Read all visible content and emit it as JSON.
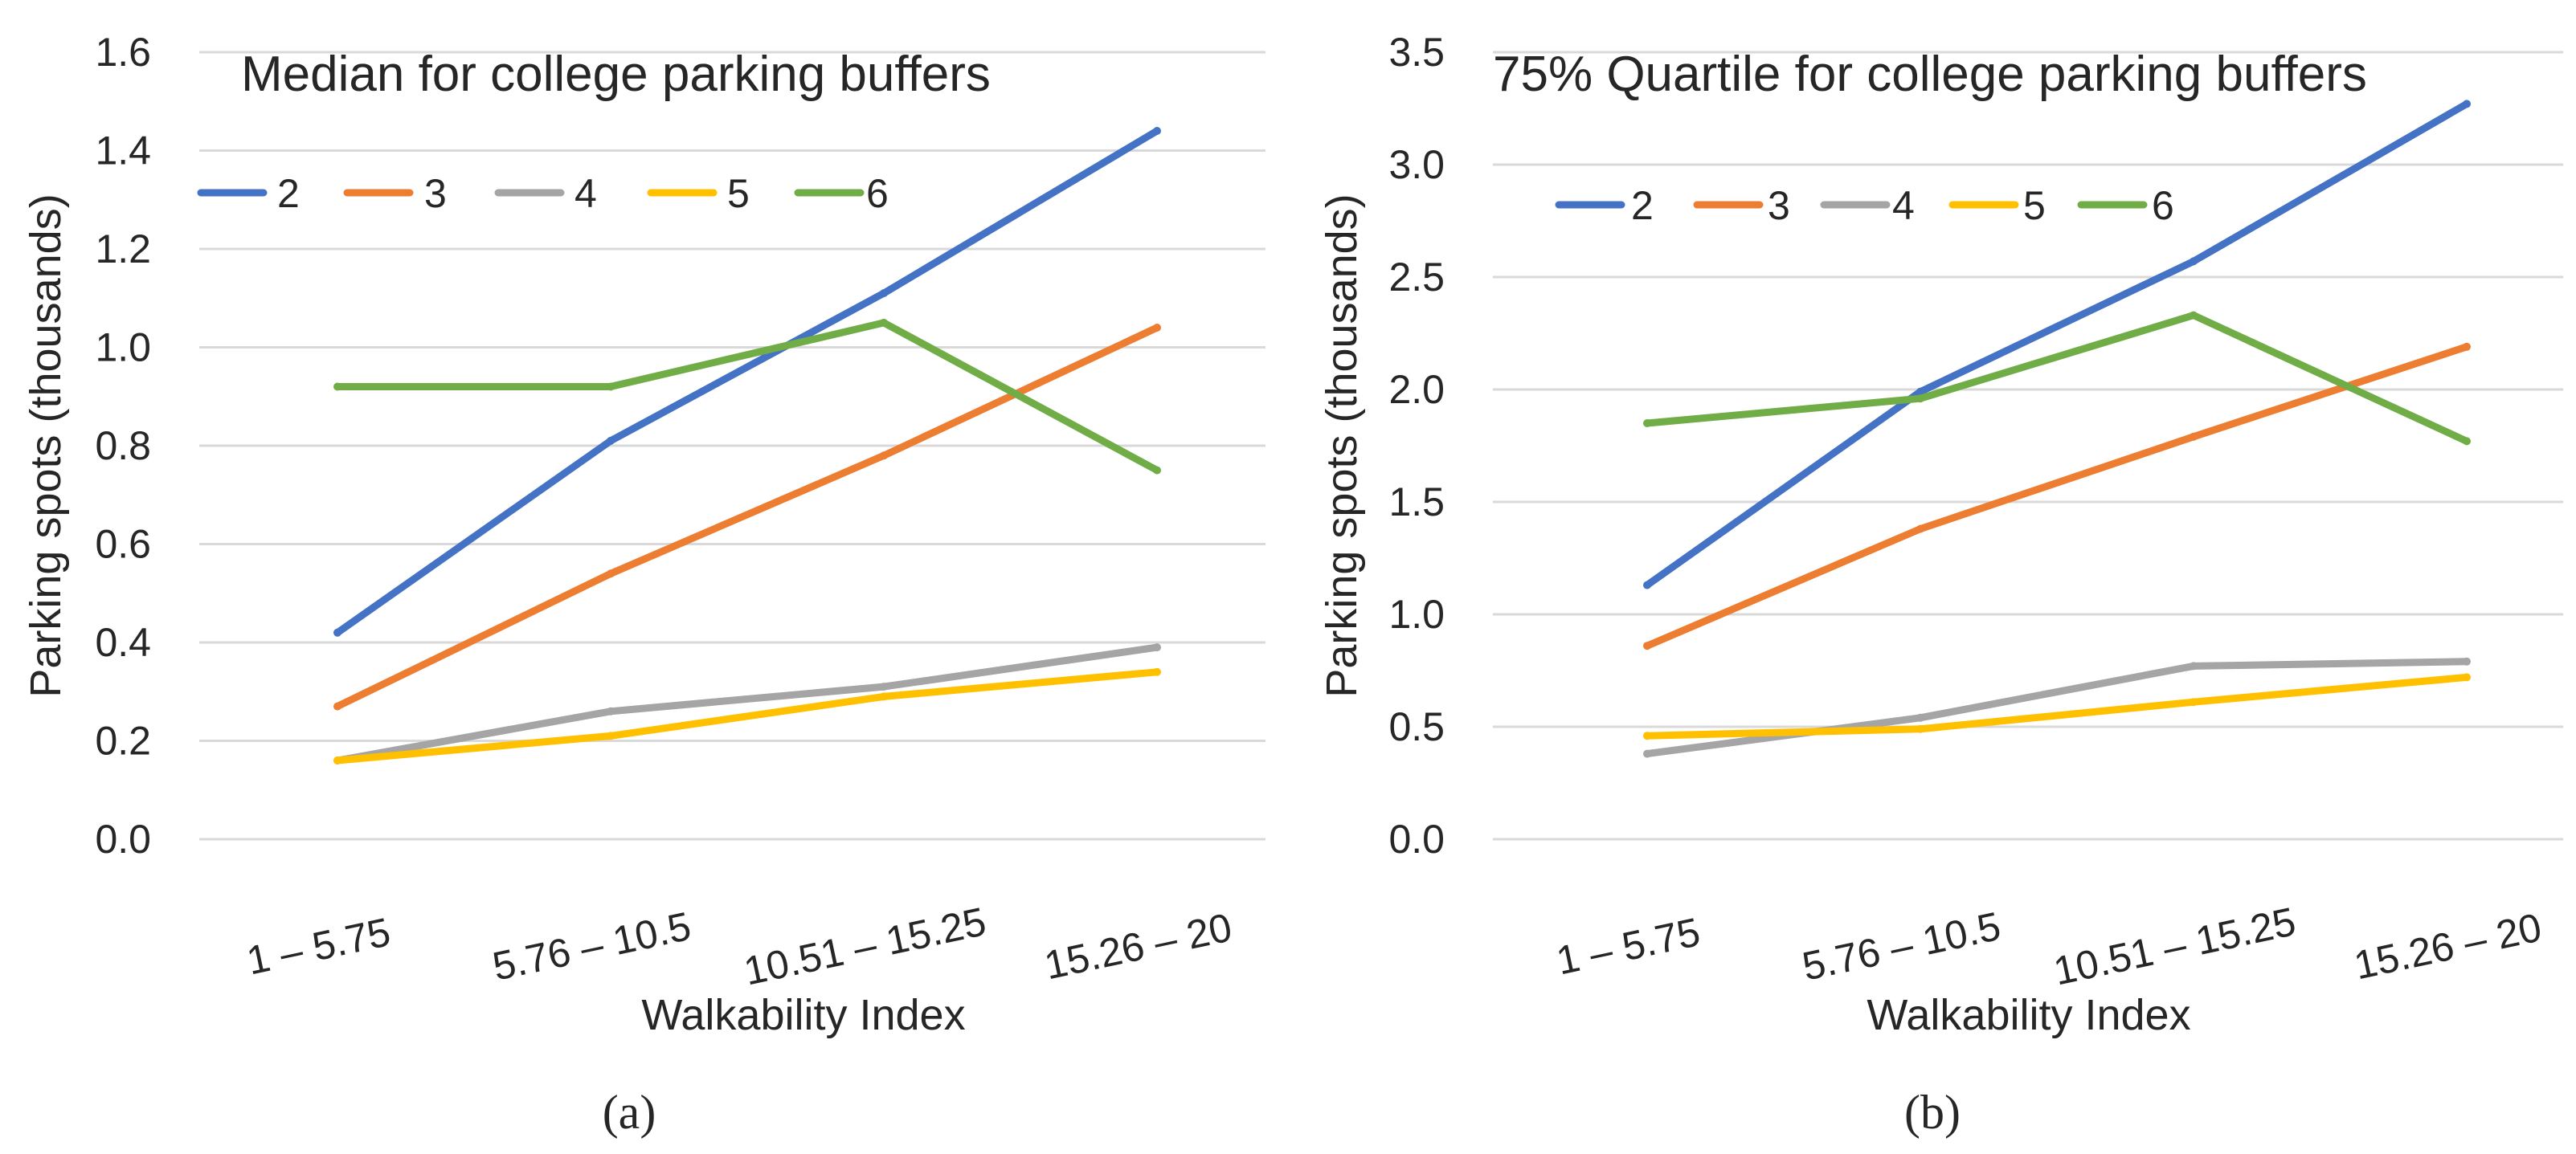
{
  "chart_data": [
    {
      "type": "line",
      "panel_label": "(a)",
      "title": "Median for college parking buffers",
      "xlabel": "Walkability Index",
      "ylabel": "Parking spots (thousands)",
      "categories": [
        "1 – 5.75",
        "5.76 – 10.5",
        "10.51 – 15.25",
        "15.26 – 20"
      ],
      "ylim": [
        0,
        1.6
      ],
      "yticks": [
        "0.0",
        "0.2",
        "0.4",
        "0.6",
        "0.8",
        "1.0",
        "1.2",
        "1.4",
        "1.6"
      ],
      "grid": true,
      "legend_position": "top-left",
      "series": [
        {
          "name": "2",
          "color": "#4472C4",
          "values": [
            0.42,
            0.81,
            1.11,
            1.44
          ]
        },
        {
          "name": "3",
          "color": "#ED7D31",
          "values": [
            0.27,
            0.54,
            0.78,
            1.04
          ]
        },
        {
          "name": "4",
          "color": "#A5A5A5",
          "values": [
            0.16,
            0.26,
            0.31,
            0.39
          ]
        },
        {
          "name": "5",
          "color": "#FFC000",
          "values": [
            0.16,
            0.21,
            0.29,
            0.34
          ]
        },
        {
          "name": "6",
          "color": "#70AD47",
          "values": [
            0.92,
            0.92,
            1.05,
            0.75
          ]
        }
      ]
    },
    {
      "type": "line",
      "panel_label": "(b)",
      "title": "75% Quartile for college parking buffers",
      "xlabel": "Walkability Index",
      "ylabel": "Parking spots (thousands)",
      "categories": [
        "1 – 5.75",
        "5.76 – 10.5",
        "10.51 – 15.25",
        "15.26 – 20"
      ],
      "ylim": [
        0,
        3.5
      ],
      "yticks": [
        "0.0",
        "0.5",
        "1.0",
        "1.5",
        "2.0",
        "2.5",
        "3.0",
        "3.5"
      ],
      "grid": true,
      "legend_position": "top-left",
      "series": [
        {
          "name": "2",
          "color": "#4472C4",
          "values": [
            1.13,
            1.99,
            2.57,
            3.27
          ]
        },
        {
          "name": "3",
          "color": "#ED7D31",
          "values": [
            0.86,
            1.38,
            1.79,
            2.19
          ]
        },
        {
          "name": "4",
          "color": "#A5A5A5",
          "values": [
            0.38,
            0.54,
            0.77,
            0.79
          ]
        },
        {
          "name": "5",
          "color": "#FFC000",
          "values": [
            0.46,
            0.49,
            0.61,
            0.72
          ]
        },
        {
          "name": "6",
          "color": "#70AD47",
          "values": [
            1.85,
            1.96,
            2.33,
            1.77
          ]
        }
      ]
    }
  ]
}
